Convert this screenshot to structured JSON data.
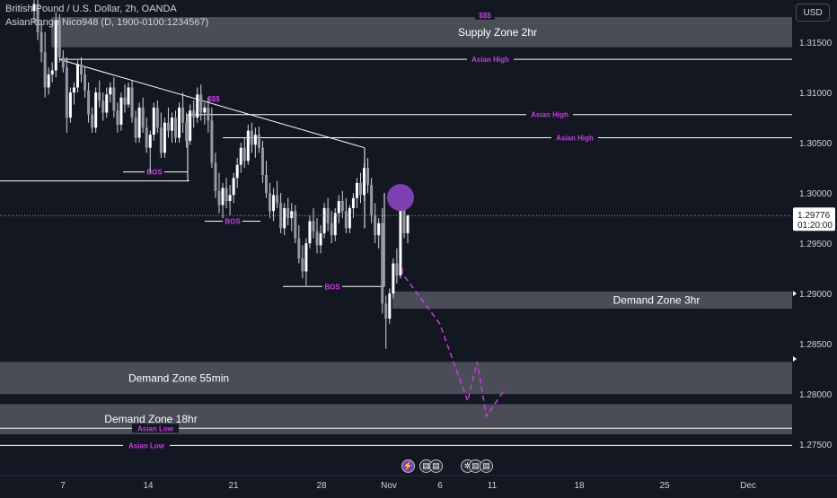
{
  "header": {
    "symbol_line": "British Pound / U.S. Dollar, 2h, OANDA",
    "indicator_line": "AsianRange Nico948 (D, 1900-0100:1234567)"
  },
  "currency_button": "USD",
  "colors": {
    "background": "#131722",
    "candle": "#d1d4dc",
    "zone": "#5d606b",
    "zone_text": "#ffffff",
    "indicator": "#c53fdc",
    "marker": "#7e3fb0",
    "axis_text": "#d1d4dc"
  },
  "chart_data": {
    "type": "candlestick",
    "xlabels": [
      "7",
      "14",
      "21",
      "28",
      "Nov",
      "6",
      "11",
      "18",
      "25",
      "Dec"
    ],
    "yticks": [
      "1.31500",
      "1.31000",
      "1.30500",
      "1.30000",
      "1.29500",
      "1.29000",
      "1.28500",
      "1.28000",
      "1.27500"
    ],
    "ylim": [
      1.2735,
      1.3192
    ],
    "price_label": "1.29776",
    "countdown": "01:20:00",
    "zones": [
      {
        "label": "Supply Zone 2hr",
        "top": 1.3175,
        "bottom": 1.3145
      },
      {
        "label": "Demand Zone 3hr",
        "top": 1.2902,
        "bottom": 1.2885
      },
      {
        "label": "Demand Zone 55min",
        "top": 1.2832,
        "bottom": 1.28
      },
      {
        "label": "Demand Zone 18hr",
        "top": 1.279,
        "bottom": 1.276
      }
    ],
    "levels": [
      {
        "label": "Asian High",
        "price": 1.3133
      },
      {
        "label": "Asian High",
        "price": 1.3078
      },
      {
        "label": "Asian High",
        "price": 1.3055
      },
      {
        "label": "Asian Low",
        "price": 1.2766
      },
      {
        "label": "Asian Low",
        "price": 1.2749
      }
    ],
    "annotations": [
      {
        "label": "$$$",
        "price": 1.3177
      },
      {
        "label": "$$$",
        "price": 1.3094
      },
      {
        "label": "BOS",
        "price": 1.3021
      },
      {
        "label": "BOS",
        "price": 1.2972
      },
      {
        "label": "BOS",
        "price": 1.2907
      }
    ],
    "current_price": 1.29776,
    "candles": [
      [
        1.3181,
        1.3192,
        1.317,
        1.3188
      ],
      [
        1.3188,
        1.3192,
        1.3152,
        1.316
      ],
      [
        1.316,
        1.3168,
        1.313,
        1.314
      ],
      [
        1.314,
        1.316,
        1.3095,
        1.3105
      ],
      [
        1.3105,
        1.3125,
        1.3098,
        1.3118
      ],
      [
        1.3118,
        1.313,
        1.311,
        1.3122
      ],
      [
        1.3122,
        1.318,
        1.3115,
        1.3172
      ],
      [
        1.3172,
        1.3178,
        1.313,
        1.3135
      ],
      [
        1.3135,
        1.3142,
        1.312,
        1.3125
      ],
      [
        1.3125,
        1.3135,
        1.306,
        1.3075
      ],
      [
        1.3075,
        1.3105,
        1.307,
        1.31
      ],
      [
        1.31,
        1.311,
        1.3088,
        1.3105
      ],
      [
        1.3105,
        1.3132,
        1.31,
        1.3128
      ],
      [
        1.3128,
        1.3135,
        1.311,
        1.3118
      ],
      [
        1.3118,
        1.3125,
        1.3095,
        1.3102
      ],
      [
        1.3102,
        1.311,
        1.307,
        1.3078
      ],
      [
        1.3078,
        1.3085,
        1.306,
        1.3065
      ],
      [
        1.3065,
        1.3105,
        1.306,
        1.31
      ],
      [
        1.31,
        1.3112,
        1.3085,
        1.3092
      ],
      [
        1.3092,
        1.31,
        1.3072,
        1.308
      ],
      [
        1.308,
        1.3105,
        1.3075,
        1.3098
      ],
      [
        1.3098,
        1.311,
        1.309,
        1.3105
      ],
      [
        1.3105,
        1.3115,
        1.3075,
        1.3082
      ],
      [
        1.3082,
        1.309,
        1.306,
        1.3068
      ],
      [
        1.3068,
        1.31,
        1.3062,
        1.3095
      ],
      [
        1.3095,
        1.3108,
        1.308,
        1.3088
      ],
      [
        1.3088,
        1.311,
        1.3085,
        1.3105
      ],
      [
        1.3105,
        1.3112,
        1.307,
        1.3075
      ],
      [
        1.3075,
        1.3082,
        1.305,
        1.3055
      ],
      [
        1.3055,
        1.309,
        1.305,
        1.3085
      ],
      [
        1.3085,
        1.3095,
        1.306,
        1.3065
      ],
      [
        1.3065,
        1.3075,
        1.304,
        1.3045
      ],
      [
        1.3045,
        1.3062,
        1.302,
        1.3058
      ],
      [
        1.3058,
        1.309,
        1.3052,
        1.3085
      ],
      [
        1.3085,
        1.3092,
        1.306,
        1.3065
      ],
      [
        1.3065,
        1.308,
        1.3035,
        1.304
      ],
      [
        1.304,
        1.3075,
        1.3035,
        1.307
      ],
      [
        1.307,
        1.3085,
        1.3055,
        1.3062
      ],
      [
        1.3062,
        1.308,
        1.305,
        1.3075
      ],
      [
        1.3075,
        1.3082,
        1.305,
        1.3055
      ],
      [
        1.3055,
        1.309,
        1.305,
        1.3085
      ],
      [
        1.3085,
        1.31,
        1.306,
        1.307
      ],
      [
        1.307,
        1.308,
        1.3045,
        1.3052
      ],
      [
        1.3052,
        1.3088,
        1.3048,
        1.3082
      ],
      [
        1.3082,
        1.3092,
        1.3065,
        1.3075
      ],
      [
        1.3075,
        1.3105,
        1.307,
        1.3098
      ],
      [
        1.3098,
        1.3108,
        1.3072,
        1.308
      ],
      [
        1.308,
        1.309,
        1.3068,
        1.3085
      ],
      [
        1.3085,
        1.3095,
        1.306,
        1.3072
      ],
      [
        1.3072,
        1.3085,
        1.3025,
        1.303
      ],
      [
        1.303,
        1.304,
        1.2995,
        1.3002
      ],
      [
        1.3002,
        1.302,
        1.298,
        1.2988
      ],
      [
        1.2988,
        1.301,
        1.2975,
        1.3005
      ],
      [
        1.3005,
        1.3015,
        1.2985,
        1.2992
      ],
      [
        1.2992,
        1.3008,
        1.2978,
        1.2998
      ],
      [
        1.2998,
        1.302,
        1.299,
        1.3015
      ],
      [
        1.3015,
        1.3035,
        1.3005,
        1.3028
      ],
      [
        1.3028,
        1.305,
        1.302,
        1.3045
      ],
      [
        1.3045,
        1.3055,
        1.3025,
        1.3032
      ],
      [
        1.3032,
        1.3068,
        1.3028,
        1.3062
      ],
      [
        1.3062,
        1.307,
        1.304,
        1.3048
      ],
      [
        1.3048,
        1.3065,
        1.3035,
        1.3058
      ],
      [
        1.3058,
        1.3066,
        1.304,
        1.3045
      ],
      [
        1.3045,
        1.3052,
        1.301,
        1.3018
      ],
      [
        1.3018,
        1.3032,
        1.2995,
        1.3
      ],
      [
        1.3,
        1.301,
        1.2975,
        1.2982
      ],
      [
        1.2982,
        1.3005,
        1.2972,
        1.2998
      ],
      [
        1.2998,
        1.3012,
        1.2985,
        1.299
      ],
      [
        1.299,
        1.3,
        1.296,
        1.2965
      ],
      [
        1.2965,
        1.299,
        1.2958,
        1.2985
      ],
      [
        1.2985,
        1.2995,
        1.2968,
        1.2975
      ],
      [
        1.2975,
        1.299,
        1.2962,
        1.2982
      ],
      [
        1.2982,
        1.2988,
        1.295,
        1.2955
      ],
      [
        1.2955,
        1.2968,
        1.293,
        1.2935
      ],
      [
        1.2935,
        1.2948,
        1.2915,
        1.2922
      ],
      [
        1.2922,
        1.2955,
        1.2908,
        1.295
      ],
      [
        1.295,
        1.2978,
        1.2945,
        1.2972
      ],
      [
        1.2972,
        1.2985,
        1.2955,
        1.2962
      ],
      [
        1.2962,
        1.2975,
        1.294,
        1.2948
      ],
      [
        1.2948,
        1.2968,
        1.294,
        1.296
      ],
      [
        1.296,
        1.299,
        1.2955,
        1.2985
      ],
      [
        1.2985,
        1.2995,
        1.2962,
        1.297
      ],
      [
        1.297,
        1.2982,
        1.295,
        1.2958
      ],
      [
        1.2958,
        1.2985,
        1.2952,
        1.298
      ],
      [
        1.298,
        1.2998,
        1.297,
        1.2992
      ],
      [
        1.2992,
        1.3002,
        1.2975,
        1.2982
      ],
      [
        1.2982,
        1.2995,
        1.296,
        1.2965
      ],
      [
        1.2965,
        1.2988,
        1.296,
        1.2985
      ],
      [
        1.2985,
        1.3,
        1.2975,
        1.2995
      ],
      [
        1.2995,
        1.3015,
        1.2985,
        1.301
      ],
      [
        1.301,
        1.302,
        1.299,
        1.2998
      ],
      [
        1.2998,
        1.303,
        1.2992,
        1.3025
      ],
      [
        1.3025,
        1.3035,
        1.3,
        1.3008
      ],
      [
        1.3008,
        1.3015,
        1.297,
        1.2978
      ],
      [
        1.2978,
        1.299,
        1.295,
        1.2958
      ],
      [
        1.2958,
        1.2975,
        1.2945,
        1.297
      ],
      [
        1.297,
        1.2985,
        1.288,
        1.289
      ],
      [
        1.289,
        1.2898,
        1.2845,
        1.2875
      ],
      [
        1.2875,
        1.2905,
        1.287,
        1.29
      ],
      [
        1.29,
        1.2935,
        1.2895,
        1.293
      ],
      [
        1.293,
        1.2945,
        1.291,
        1.2918
      ],
      [
        1.2918,
        1.2995,
        1.2915,
        1.299
      ],
      [
        1.299,
        1.2998,
        1.2955,
        1.296
      ],
      [
        1.296,
        1.2978,
        1.295,
        1.2978
      ]
    ],
    "projection": [
      [
        1.292,
        0
      ],
      [
        1.287,
        16
      ],
      [
        1.2793,
        28
      ],
      [
        1.2832,
        32
      ],
      [
        1.2778,
        36
      ],
      [
        1.2805,
        44
      ]
    ]
  }
}
